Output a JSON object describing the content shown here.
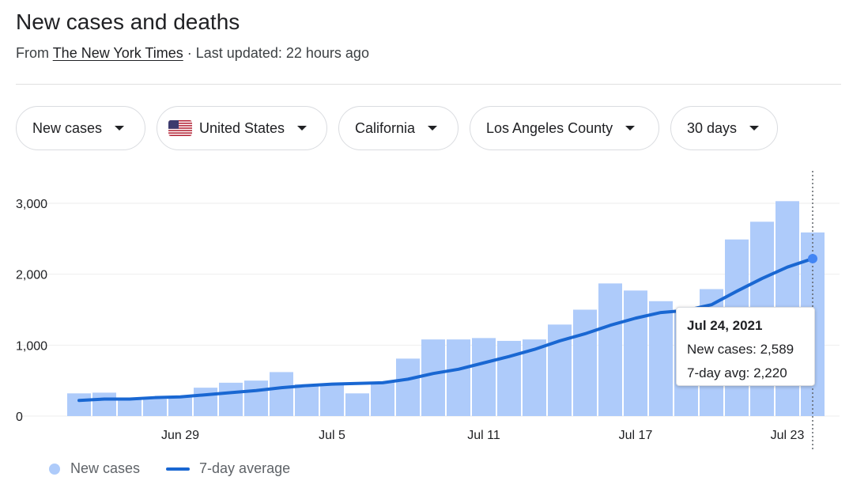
{
  "header": {
    "title": "New cases and deaths",
    "source_prefix": "From",
    "source_name": "The New York Times",
    "updated": "· Last updated: 22 hours ago"
  },
  "filters": [
    {
      "label": "New cases",
      "flag": false
    },
    {
      "label": "United States",
      "flag": true
    },
    {
      "label": "California",
      "flag": false
    },
    {
      "label": "Los Angeles County",
      "flag": false
    },
    {
      "label": "30 days",
      "flag": false
    }
  ],
  "tooltip": {
    "date": "Jul 24, 2021",
    "cases": "New cases: 2,589",
    "avg": "7-day avg: 2,220"
  },
  "legend": {
    "cases": "New cases",
    "avg": "7-day average"
  },
  "colors": {
    "bar": "#aecbfa",
    "line": "#1967d2",
    "point": "#4285f4",
    "grid": "#eeeeee"
  },
  "chart_data": {
    "type": "bar",
    "title": "New cases and deaths",
    "x": [
      "Jun 25",
      "Jun 26",
      "Jun 27",
      "Jun 28",
      "Jun 29",
      "Jun 30",
      "Jul 1",
      "Jul 2",
      "Jul 3",
      "Jul 4",
      "Jul 5",
      "Jul 6",
      "Jul 7",
      "Jul 8",
      "Jul 9",
      "Jul 10",
      "Jul 11",
      "Jul 12",
      "Jul 13",
      "Jul 14",
      "Jul 15",
      "Jul 16",
      "Jul 17",
      "Jul 18",
      "Jul 19",
      "Jul 20",
      "Jul 21",
      "Jul 22",
      "Jul 23",
      "Jul 24"
    ],
    "x_ticks": [
      "Jun 29",
      "Jul 5",
      "Jul 11",
      "Jul 17",
      "Jul 23"
    ],
    "y_ticks": [
      "0",
      "1,000",
      "2,000",
      "3,000"
    ],
    "ylim": [
      0,
      3000
    ],
    "series": [
      {
        "name": "New cases",
        "type": "bar",
        "values": [
          320,
          330,
          240,
          240,
          270,
          400,
          470,
          500,
          620,
          450,
          440,
          320,
          480,
          810,
          1080,
          1080,
          1100,
          1060,
          1080,
          1290,
          1500,
          1870,
          1770,
          1620,
          1490,
          1790,
          2490,
          2740,
          3030,
          2589
        ]
      },
      {
        "name": "7-day average",
        "type": "line",
        "values": [
          220,
          240,
          240,
          260,
          270,
          300,
          330,
          360,
          400,
          430,
          450,
          460,
          470,
          520,
          600,
          660,
          750,
          840,
          940,
          1060,
          1160,
          1280,
          1380,
          1460,
          1490,
          1570,
          1760,
          1940,
          2100,
          2220
        ]
      }
    ],
    "grid": true,
    "legend_position": "bottom-left",
    "highlight": {
      "date": "Jul 24, 2021",
      "cases": 2589,
      "avg": 2220
    }
  }
}
